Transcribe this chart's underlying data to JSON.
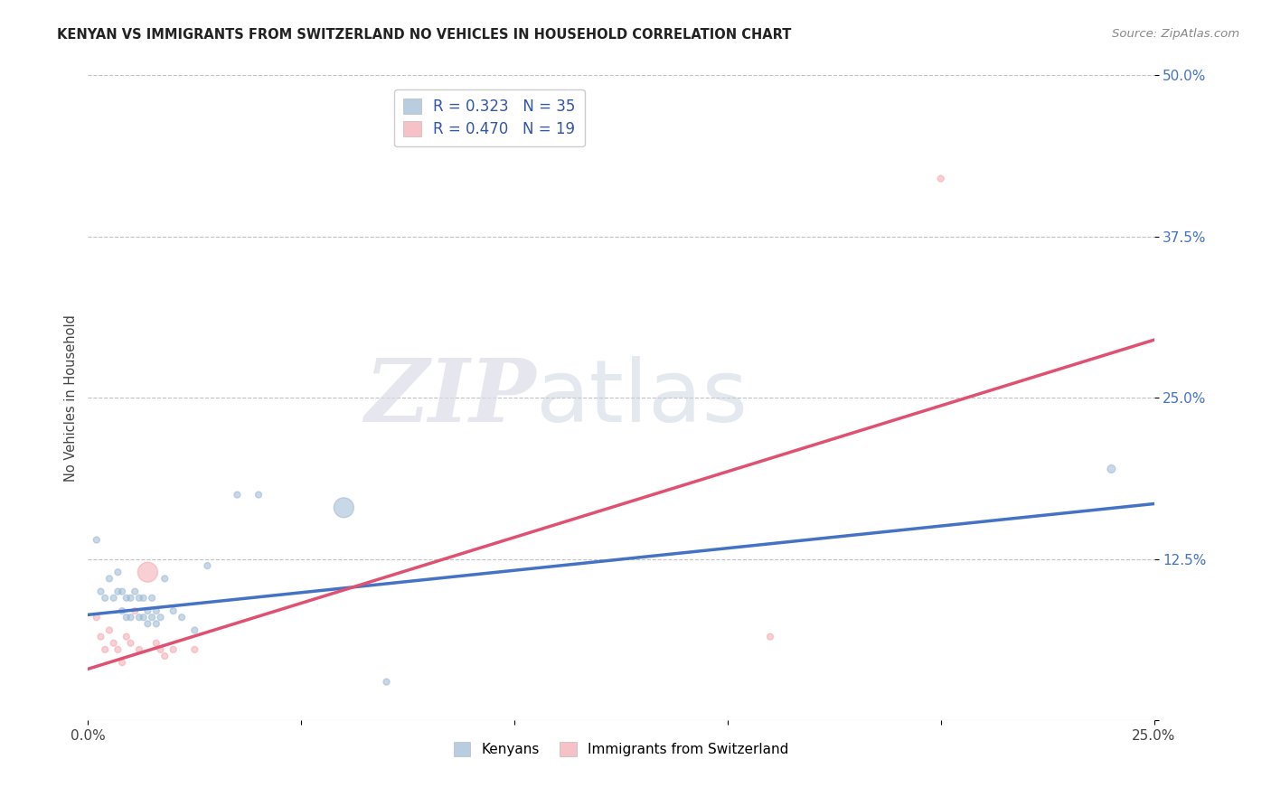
{
  "title": "KENYAN VS IMMIGRANTS FROM SWITZERLAND NO VEHICLES IN HOUSEHOLD CORRELATION CHART",
  "source": "Source: ZipAtlas.com",
  "ylabel": "No Vehicles in Household",
  "xlim": [
    0.0,
    0.25
  ],
  "ylim": [
    0.0,
    0.5
  ],
  "xticks": [
    0.0,
    0.05,
    0.1,
    0.15,
    0.2,
    0.25
  ],
  "yticks": [
    0.0,
    0.125,
    0.25,
    0.375,
    0.5
  ],
  "xticklabels": [
    "0.0%",
    "",
    "",
    "",
    "",
    "25.0%"
  ],
  "yticklabels": [
    "",
    "12.5%",
    "25.0%",
    "37.5%",
    "50.0%"
  ],
  "legend_r_blue": "R = 0.323",
  "legend_n_blue": "N = 35",
  "legend_r_pink": "R = 0.470",
  "legend_n_pink": "N = 19",
  "legend_label_blue": "Kenyans",
  "legend_label_pink": "Immigrants from Switzerland",
  "blue_color": "#9BB8D4",
  "pink_color": "#F4A8B0",
  "blue_line_color": "#4472C4",
  "pink_line_color": "#E05070",
  "watermark_zip": "ZIP",
  "watermark_atlas": "atlas",
  "blue_scatter_x": [
    0.002,
    0.003,
    0.004,
    0.005,
    0.006,
    0.007,
    0.007,
    0.008,
    0.008,
    0.009,
    0.009,
    0.01,
    0.01,
    0.011,
    0.012,
    0.012,
    0.013,
    0.013,
    0.014,
    0.014,
    0.015,
    0.015,
    0.016,
    0.016,
    0.017,
    0.018,
    0.02,
    0.022,
    0.025,
    0.028,
    0.035,
    0.04,
    0.06,
    0.07,
    0.24
  ],
  "blue_scatter_y": [
    0.14,
    0.1,
    0.095,
    0.11,
    0.095,
    0.115,
    0.1,
    0.1,
    0.085,
    0.095,
    0.08,
    0.095,
    0.08,
    0.1,
    0.095,
    0.08,
    0.095,
    0.08,
    0.085,
    0.075,
    0.095,
    0.08,
    0.085,
    0.075,
    0.08,
    0.11,
    0.085,
    0.08,
    0.07,
    0.12,
    0.175,
    0.175,
    0.165,
    0.03,
    0.195
  ],
  "blue_scatter_size": [
    25,
    25,
    25,
    25,
    25,
    25,
    25,
    25,
    25,
    25,
    25,
    25,
    25,
    25,
    25,
    25,
    25,
    25,
    25,
    25,
    25,
    25,
    25,
    25,
    25,
    25,
    25,
    25,
    25,
    25,
    25,
    25,
    250,
    25,
    40
  ],
  "pink_scatter_x": [
    0.002,
    0.003,
    0.004,
    0.005,
    0.006,
    0.007,
    0.008,
    0.009,
    0.01,
    0.011,
    0.012,
    0.014,
    0.016,
    0.017,
    0.018,
    0.02,
    0.025,
    0.16,
    0.2
  ],
  "pink_scatter_y": [
    0.08,
    0.065,
    0.055,
    0.07,
    0.06,
    0.055,
    0.045,
    0.065,
    0.06,
    0.085,
    0.055,
    0.115,
    0.06,
    0.055,
    0.05,
    0.055,
    0.055,
    0.065,
    0.42
  ],
  "pink_scatter_size": [
    25,
    25,
    25,
    25,
    25,
    25,
    25,
    25,
    25,
    25,
    25,
    250,
    25,
    25,
    25,
    25,
    25,
    25,
    25
  ],
  "blue_line_x": [
    0.0,
    0.25
  ],
  "blue_line_y": [
    0.082,
    0.168
  ],
  "pink_line_x": [
    0.0,
    0.25
  ],
  "pink_line_y": [
    0.04,
    0.295
  ]
}
